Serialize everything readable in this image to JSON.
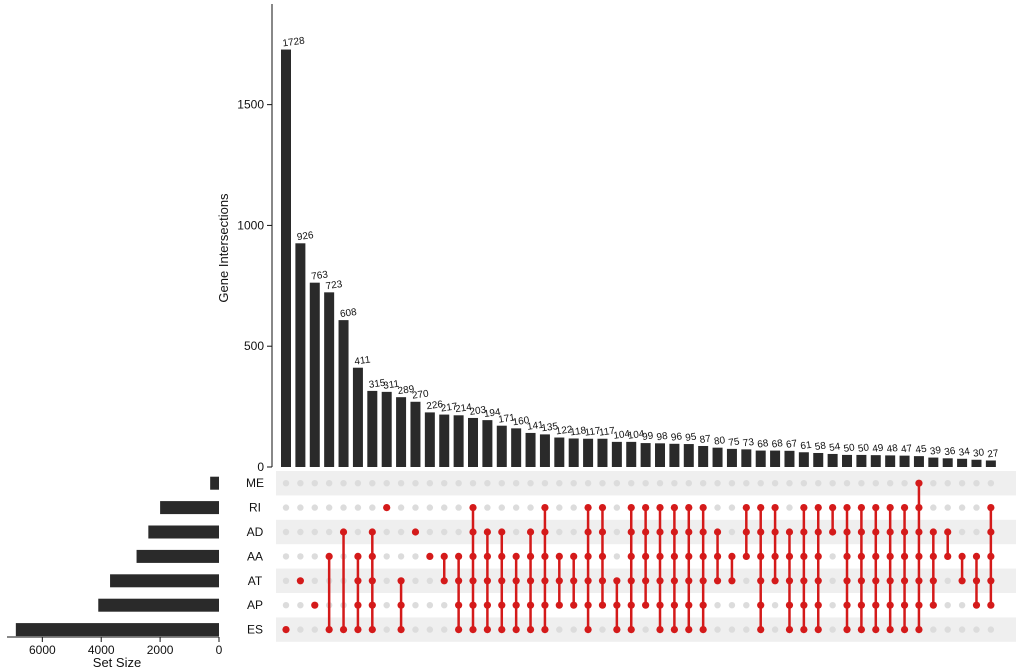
{
  "chart_data": {
    "type": "bar",
    "title": "",
    "ylabel": "Gene Intersections",
    "ylim": [
      0,
      1900
    ],
    "yticks": [
      0,
      500,
      1000,
      1500
    ],
    "ytick_labels": [
      "0",
      "500",
      "1000",
      "1500"
    ],
    "intersection_sizes": [
      1728,
      926,
      763,
      723,
      608,
      411,
      315,
      311,
      289,
      270,
      226,
      217,
      214,
      203,
      194,
      171,
      160,
      141,
      135,
      122,
      118,
      117,
      117,
      104,
      104,
      99,
      98,
      96,
      95,
      87,
      80,
      75,
      73,
      68,
      68,
      67,
      61,
      58,
      54,
      50,
      50,
      49,
      48,
      47,
      45,
      39,
      36,
      34,
      30,
      27
    ],
    "sets": [
      "ME",
      "RI",
      "AD",
      "AA",
      "AT",
      "AP",
      "ES"
    ],
    "intersections": [
      [
        "ES"
      ],
      [
        "AT"
      ],
      [
        "AP"
      ],
      [
        "AA",
        "ES"
      ],
      [
        "AD",
        "ES"
      ],
      [
        "AA",
        "AT",
        "AP",
        "ES"
      ],
      [
        "AD",
        "AA",
        "AT",
        "AP",
        "ES"
      ],
      [
        "RI"
      ],
      [
        "AT",
        "AP",
        "ES"
      ],
      [
        "AD"
      ],
      [
        "AA"
      ],
      [
        "AA",
        "AT"
      ],
      [
        "AA",
        "AT",
        "AP",
        "ES"
      ],
      [
        "RI",
        "AD",
        "AA",
        "AT",
        "AP",
        "ES"
      ],
      [
        "AD",
        "AA",
        "AT",
        "AP",
        "ES"
      ],
      [
        "AD",
        "AA",
        "AT",
        "AP",
        "ES"
      ],
      [
        "AA",
        "AT",
        "AP",
        "ES"
      ],
      [
        "AD",
        "AA",
        "AT",
        "AP",
        "ES"
      ],
      [
        "RI",
        "AD",
        "AA",
        "AT",
        "AP",
        "ES"
      ],
      [
        "AA",
        "AT",
        "AP"
      ],
      [
        "AA",
        "AT",
        "AP"
      ],
      [
        "RI",
        "AD",
        "AA",
        "AT",
        "AP",
        "ES"
      ],
      [
        "RI",
        "AD",
        "AA",
        "AT",
        "AP"
      ],
      [
        "AT",
        "AP",
        "ES"
      ],
      [
        "RI",
        "AD",
        "AA",
        "AT",
        "AP",
        "ES"
      ],
      [
        "RI",
        "AD",
        "AA",
        "AT",
        "AP"
      ],
      [
        "RI",
        "AD",
        "AA",
        "AT",
        "AP",
        "ES"
      ],
      [
        "RI",
        "AD",
        "AA",
        "AT",
        "AP",
        "ES"
      ],
      [
        "RI",
        "AD",
        "AA",
        "AT",
        "AP",
        "ES"
      ],
      [
        "RI",
        "AD",
        "AA",
        "AT",
        "AP",
        "ES"
      ],
      [
        "AD",
        "AA",
        "AT"
      ],
      [
        "AA",
        "AT"
      ],
      [
        "RI",
        "AD",
        "AA"
      ],
      [
        "RI",
        "AD",
        "AA",
        "AT",
        "AP",
        "ES"
      ],
      [
        "RI",
        "AD",
        "AA",
        "AT"
      ],
      [
        "AD",
        "AA",
        "AT",
        "AP",
        "ES"
      ],
      [
        "RI",
        "AD",
        "AA",
        "AT",
        "AP",
        "ES"
      ],
      [
        "RI",
        "AD",
        "AA",
        "AT",
        "AP",
        "ES"
      ],
      [
        "RI",
        "AD"
      ],
      [
        "RI",
        "AD",
        "AA",
        "AT",
        "AP",
        "ES"
      ],
      [
        "RI",
        "AD",
        "AA",
        "AT",
        "AP",
        "ES"
      ],
      [
        "RI",
        "AD",
        "AA",
        "AT",
        "AP",
        "ES"
      ],
      [
        "RI",
        "AD",
        "AA",
        "AT",
        "AP",
        "ES"
      ],
      [
        "RI",
        "AD",
        "AA",
        "AT",
        "AP",
        "ES"
      ],
      [
        "ME",
        "RI",
        "AD",
        "AA",
        "AT",
        "AP",
        "ES"
      ],
      [
        "AD",
        "AA",
        "AT",
        "AP"
      ],
      [
        "AD",
        "AA"
      ],
      [
        "AA",
        "AT"
      ],
      [
        "AA",
        "AT",
        "AP"
      ],
      [
        "RI",
        "AD",
        "AA",
        "AT",
        "AP"
      ]
    ],
    "set_sizes": [
      {
        "name": "ME",
        "value": 300
      },
      {
        "name": "RI",
        "value": 2000
      },
      {
        "name": "AD",
        "value": 2400
      },
      {
        "name": "AA",
        "value": 2800
      },
      {
        "name": "AT",
        "value": 3700
      },
      {
        "name": "AP",
        "value": 4100
      },
      {
        "name": "ES",
        "value": 6900
      }
    ],
    "set_size_label": "Set Size",
    "set_size_xlim": [
      0,
      7200
    ],
    "set_size_ticks": [
      6000,
      4000,
      2000,
      0
    ],
    "set_size_tick_labels": [
      "6000",
      "4000",
      "2000",
      "0"
    ],
    "colors": {
      "bar": "#2a2a2a",
      "dot_active": "#d41a1a",
      "dot_inactive": "#dcdcdc",
      "row_shade": "#efefef"
    }
  }
}
